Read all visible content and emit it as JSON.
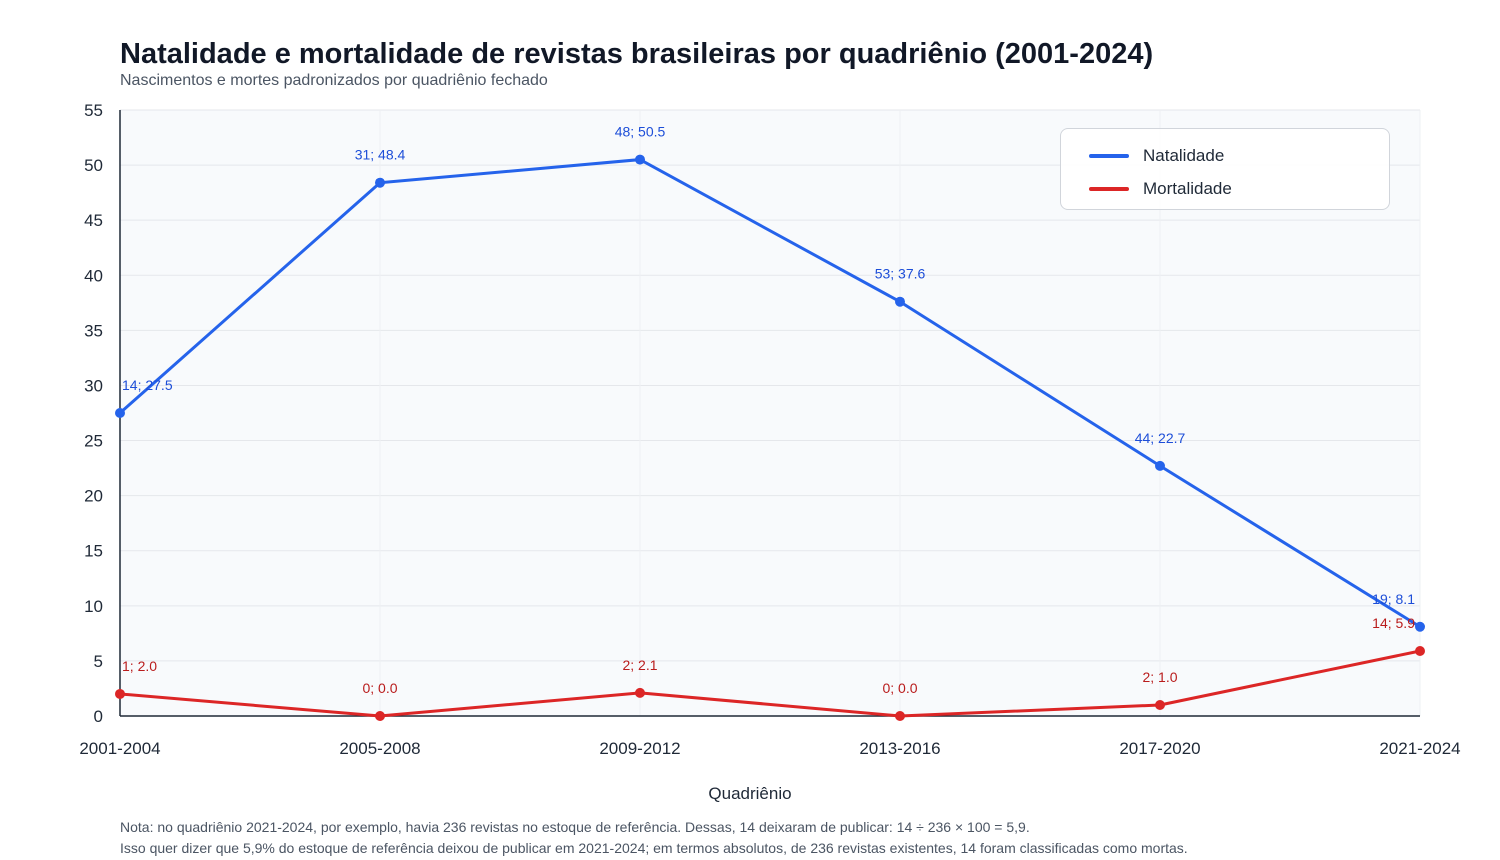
{
  "title": "Natalidade e mortalidade de revistas brasileiras por quadriênio (2001-2024)",
  "subtitle": "Nascimentos e mortes padronizados por quadriênio fechado",
  "notes": [
    "Nota: no quadriênio 2021-2024, por exemplo, havia 236 revistas no estoque de referência. Dessas, 14 deixaram de publicar: 14 ÷ 236 × 100 = 5,9.",
    "Isso quer dizer que 5,9% do estoque de referência deixou de publicar em 2021-2024; em termos absolutos, de 236 revistas existentes, 14 foram classificadas como mortas."
  ],
  "chart_data": {
    "type": "line",
    "categories": [
      "2001-2004",
      "2005-2008",
      "2009-2012",
      "2013-2016",
      "2017-2020",
      "2021-2024"
    ],
    "xlabel": "Quadriênio",
    "ylabel": "",
    "ylim": [
      0,
      55
    ],
    "yticks": [
      0,
      5,
      10,
      15,
      20,
      25,
      30,
      35,
      40,
      45,
      50,
      55
    ],
    "grid": true,
    "legend_position": "top-right",
    "series": [
      {
        "name": "Natalidade",
        "color": "#2563eb",
        "label_color": "#1d4ed8",
        "values": [
          27.5,
          48.4,
          50.5,
          37.6,
          22.7,
          8.1
        ],
        "labels": [
          "14; 27.5",
          "31; 48.4",
          "48; 50.5",
          "53; 37.6",
          "44; 22.7",
          "19; 8.1"
        ]
      },
      {
        "name": "Mortalidade",
        "color": "#dc2626",
        "label_color": "#b91c1c",
        "values": [
          2.0,
          0.0,
          2.1,
          0.0,
          1.0,
          5.9
        ],
        "labels": [
          "1; 2.0",
          "0; 0.0",
          "2; 2.1",
          "0; 0.0",
          "2; 1.0",
          "14; 5.9"
        ]
      }
    ]
  }
}
